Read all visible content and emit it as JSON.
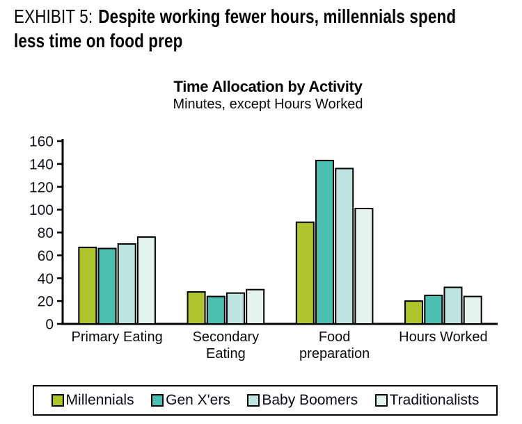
{
  "header": {
    "exhibit_label": "EXHIBIT 5:",
    "title_line1": "Despite working fewer hours, millennials spend",
    "title_line2": "less time on food prep"
  },
  "chart_data": {
    "type": "bar",
    "title": "Time Allocation by Activity",
    "subtitle": "Minutes, except Hours Worked",
    "categories": [
      "Primary Eating",
      "Secondary Eating",
      "Food preparation",
      "Hours Worked"
    ],
    "category_label_lines": [
      [
        "Primary Eating"
      ],
      [
        "Secondary",
        "Eating"
      ],
      [
        "Food",
        "preparation"
      ],
      [
        "Hours Worked"
      ]
    ],
    "series": [
      {
        "name": "Millennials",
        "color": "#b0c42d",
        "values": [
          67,
          28,
          89,
          20
        ]
      },
      {
        "name": "Gen X'ers",
        "color": "#4dbfb0",
        "values": [
          66,
          24,
          143,
          25
        ]
      },
      {
        "name": "Baby Boomers",
        "color": "#bfe3e0",
        "values": [
          70,
          27,
          136,
          32
        ]
      },
      {
        "name": "Traditionalists",
        "color": "#e4f3ef",
        "values": [
          76,
          30,
          101,
          24
        ]
      }
    ],
    "ylim": [
      0,
      160
    ],
    "ytick_step": 20,
    "grid": false,
    "legend_position": "bottom",
    "bar_outline_color": "#000000",
    "axis_color": "#000000",
    "tick_label_color": "#14141e",
    "category_label_color": "#0a0a0a"
  }
}
